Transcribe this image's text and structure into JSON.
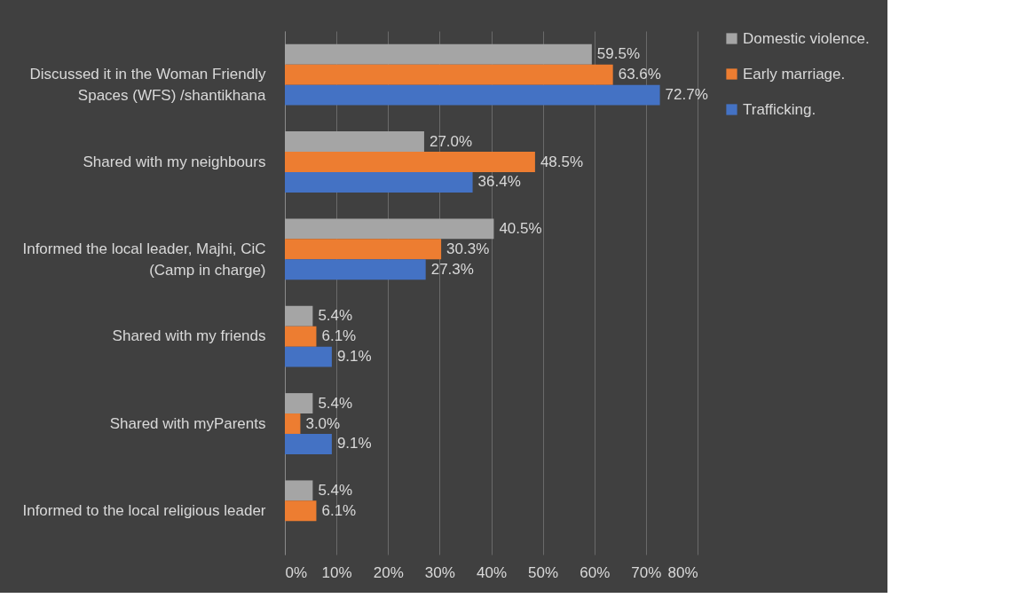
{
  "chart_data": {
    "type": "bar",
    "orientation": "horizontal",
    "categories": [
      "Discussed it in the Woman Friendly Spaces (WFS) /shantikhana",
      "Shared with my neighbours",
      "Informed the local leader,  Majhi, CiC (Camp in charge)",
      "Shared with my friends",
      "Shared with myParents",
      "Informed to the local religious leader"
    ],
    "series": [
      {
        "name": "Domestic violence.",
        "color": "#a5a5a5",
        "values": [
          59.5,
          27.0,
          40.5,
          5.4,
          5.4,
          5.4
        ],
        "value_labels": [
          "59.5%",
          "27.0%",
          "40.5%",
          "5.4%",
          "5.4%",
          "5.4%"
        ]
      },
      {
        "name": "Early marriage.",
        "color": "#ed7d31",
        "values": [
          63.6,
          48.5,
          30.3,
          6.1,
          3.0,
          6.1
        ],
        "value_labels": [
          "63.6%",
          "48.5%",
          "30.3%",
          "6.1%",
          "3.0%",
          "6.1%"
        ]
      },
      {
        "name": " Trafficking.",
        "color": "#4472c4",
        "values": [
          72.7,
          36.4,
          27.3,
          9.1,
          9.1,
          null
        ],
        "value_labels": [
          "72.7%",
          "36.4%",
          "27.3%",
          "9.1%",
          "9.1%",
          null
        ]
      }
    ],
    "xlim": [
      0,
      80
    ],
    "xticks": [
      {
        "value": 0,
        "label": "0%"
      },
      {
        "value": 10,
        "label": "10%"
      },
      {
        "value": 20,
        "label": "20%"
      },
      {
        "value": 30,
        "label": "30%"
      },
      {
        "value": 40,
        "label": "40%"
      },
      {
        "value": 50,
        "label": "50%"
      },
      {
        "value": 60,
        "label": "60%"
      },
      {
        "value": 70,
        "label": "70%"
      },
      {
        "value": 80,
        "label": "80%"
      }
    ],
    "grid": "x",
    "legend": "right"
  }
}
